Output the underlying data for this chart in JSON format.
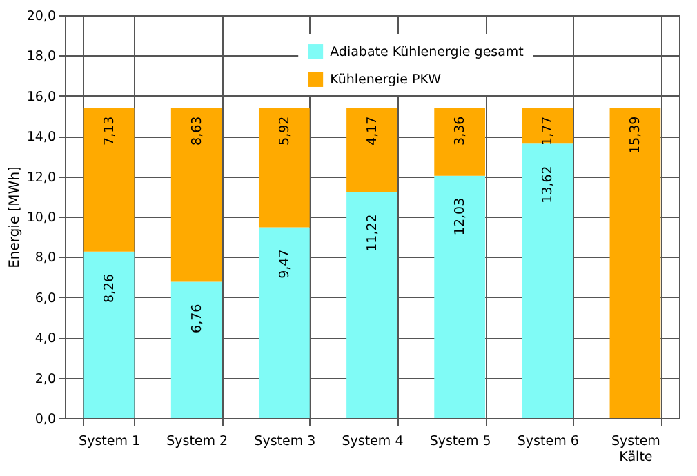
{
  "chart_data": {
    "type": "bar",
    "stacked": true,
    "ylabel": "Energie [MWh]",
    "categories": [
      "System 1",
      "System 2",
      "System 3",
      "System 4",
      "System 5",
      "System 6",
      "System Kälte"
    ],
    "series": [
      {
        "name": "Adiabate Kühlenergie gesamt",
        "color": "#80fbf6",
        "values": [
          8.26,
          6.76,
          9.47,
          11.22,
          12.03,
          13.62,
          0
        ],
        "value_labels": [
          "8,26",
          "6,76",
          "9,47",
          "11,22",
          "12,03",
          "13,62",
          null
        ]
      },
      {
        "name": "Kühlenergie PKW",
        "color": "#ffaa00",
        "values": [
          7.13,
          8.63,
          5.92,
          4.17,
          3.36,
          1.77,
          15.39
        ],
        "value_labels": [
          "7,13",
          "8,63",
          "5,92",
          "4,17",
          "3,36",
          "1,77",
          "15,39"
        ]
      }
    ],
    "ylim": [
      0,
      20
    ],
    "yticks": [
      {
        "value": 0,
        "label": "0,0"
      },
      {
        "value": 2,
        "label": "2,0"
      },
      {
        "value": 4,
        "label": "4,0"
      },
      {
        "value": 6,
        "label": "6,0"
      },
      {
        "value": 8,
        "label": "8,0"
      },
      {
        "value": 10,
        "label": "10,0"
      },
      {
        "value": 12,
        "label": "12,0"
      },
      {
        "value": 14,
        "label": "14,0"
      },
      {
        "value": 16,
        "label": "16,0"
      },
      {
        "value": 18,
        "label": "18,0"
      },
      {
        "value": 20,
        "label": "20,0"
      }
    ],
    "grid": true,
    "legend": "top"
  }
}
